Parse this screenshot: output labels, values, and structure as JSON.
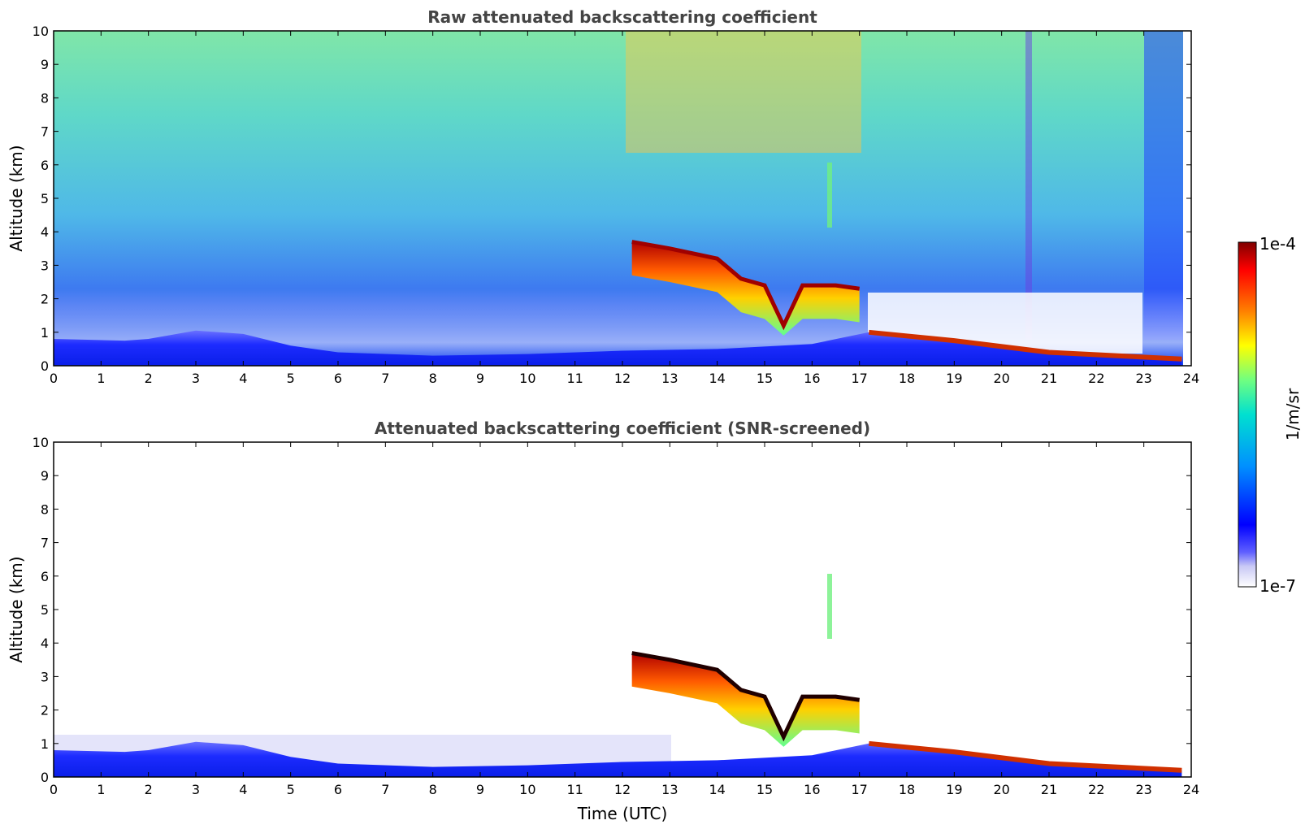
{
  "chart_data": [
    {
      "type": "heatmap",
      "title": "Raw attenuated backscattering coefficient",
      "xlabel": "",
      "ylabel": "Altitude (km)",
      "xlim": [
        0,
        24
      ],
      "ylim": [
        0,
        10
      ],
      "xticks": [
        "0",
        "1",
        "2",
        "3",
        "4",
        "5",
        "6",
        "7",
        "8",
        "9",
        "10",
        "11",
        "12",
        "13",
        "14",
        "15",
        "16",
        "17",
        "18",
        "19",
        "20",
        "21",
        "22",
        "23",
        "24"
      ],
      "yticks": [
        "0",
        "1",
        "2",
        "3",
        "4",
        "5",
        "6",
        "7",
        "8",
        "9",
        "10"
      ],
      "features": {
        "boundary_layer_top_km": [
          [
            0,
            0.8
          ],
          [
            1.5,
            0.75
          ],
          [
            2,
            0.8
          ],
          [
            3,
            1.05
          ],
          [
            4,
            0.95
          ],
          [
            5,
            0.6
          ],
          [
            6,
            0.4
          ],
          [
            8,
            0.3
          ],
          [
            10,
            0.35
          ],
          [
            12,
            0.45
          ],
          [
            14,
            0.5
          ],
          [
            16,
            0.65
          ],
          [
            17.2,
            1.0
          ],
          [
            19,
            0.75
          ],
          [
            21,
            0.4
          ],
          [
            23.8,
            0.2
          ]
        ],
        "cloud_layer_km": [
          [
            12.2,
            3.7
          ],
          [
            13,
            3.5
          ],
          [
            14,
            3.2
          ],
          [
            14.5,
            2.6
          ],
          [
            15,
            2.4
          ],
          [
            15.4,
            1.2
          ],
          [
            15.8,
            2.4
          ],
          [
            16.5,
            2.4
          ],
          [
            17,
            2.3
          ]
        ],
        "noise_region_top_km": 10,
        "data_end_hour": 23.8
      }
    },
    {
      "type": "heatmap",
      "title": "Attenuated backscattering coefficient (SNR-screened)",
      "xlabel": "Time (UTC)",
      "ylabel": "Altitude (km)",
      "xlim": [
        0,
        24
      ],
      "ylim": [
        0,
        10
      ],
      "xticks": [
        "0",
        "1",
        "2",
        "3",
        "4",
        "5",
        "6",
        "7",
        "8",
        "9",
        "10",
        "11",
        "12",
        "13",
        "14",
        "15",
        "16",
        "17",
        "18",
        "19",
        "20",
        "21",
        "22",
        "23",
        "24"
      ],
      "yticks": [
        "0",
        "1",
        "2",
        "3",
        "4",
        "5",
        "6",
        "7",
        "8",
        "9",
        "10"
      ],
      "features": {
        "screened": true
      }
    }
  ],
  "colorbar": {
    "label": "1/m/sr",
    "max_label": "1e-4",
    "min_label": "1e-7",
    "colormap": [
      "#e6e6fa",
      "#0000ff",
      "#0080ff",
      "#00e0e0",
      "#80ff80",
      "#ffff00",
      "#ff8000",
      "#ff0000",
      "#800000"
    ]
  }
}
